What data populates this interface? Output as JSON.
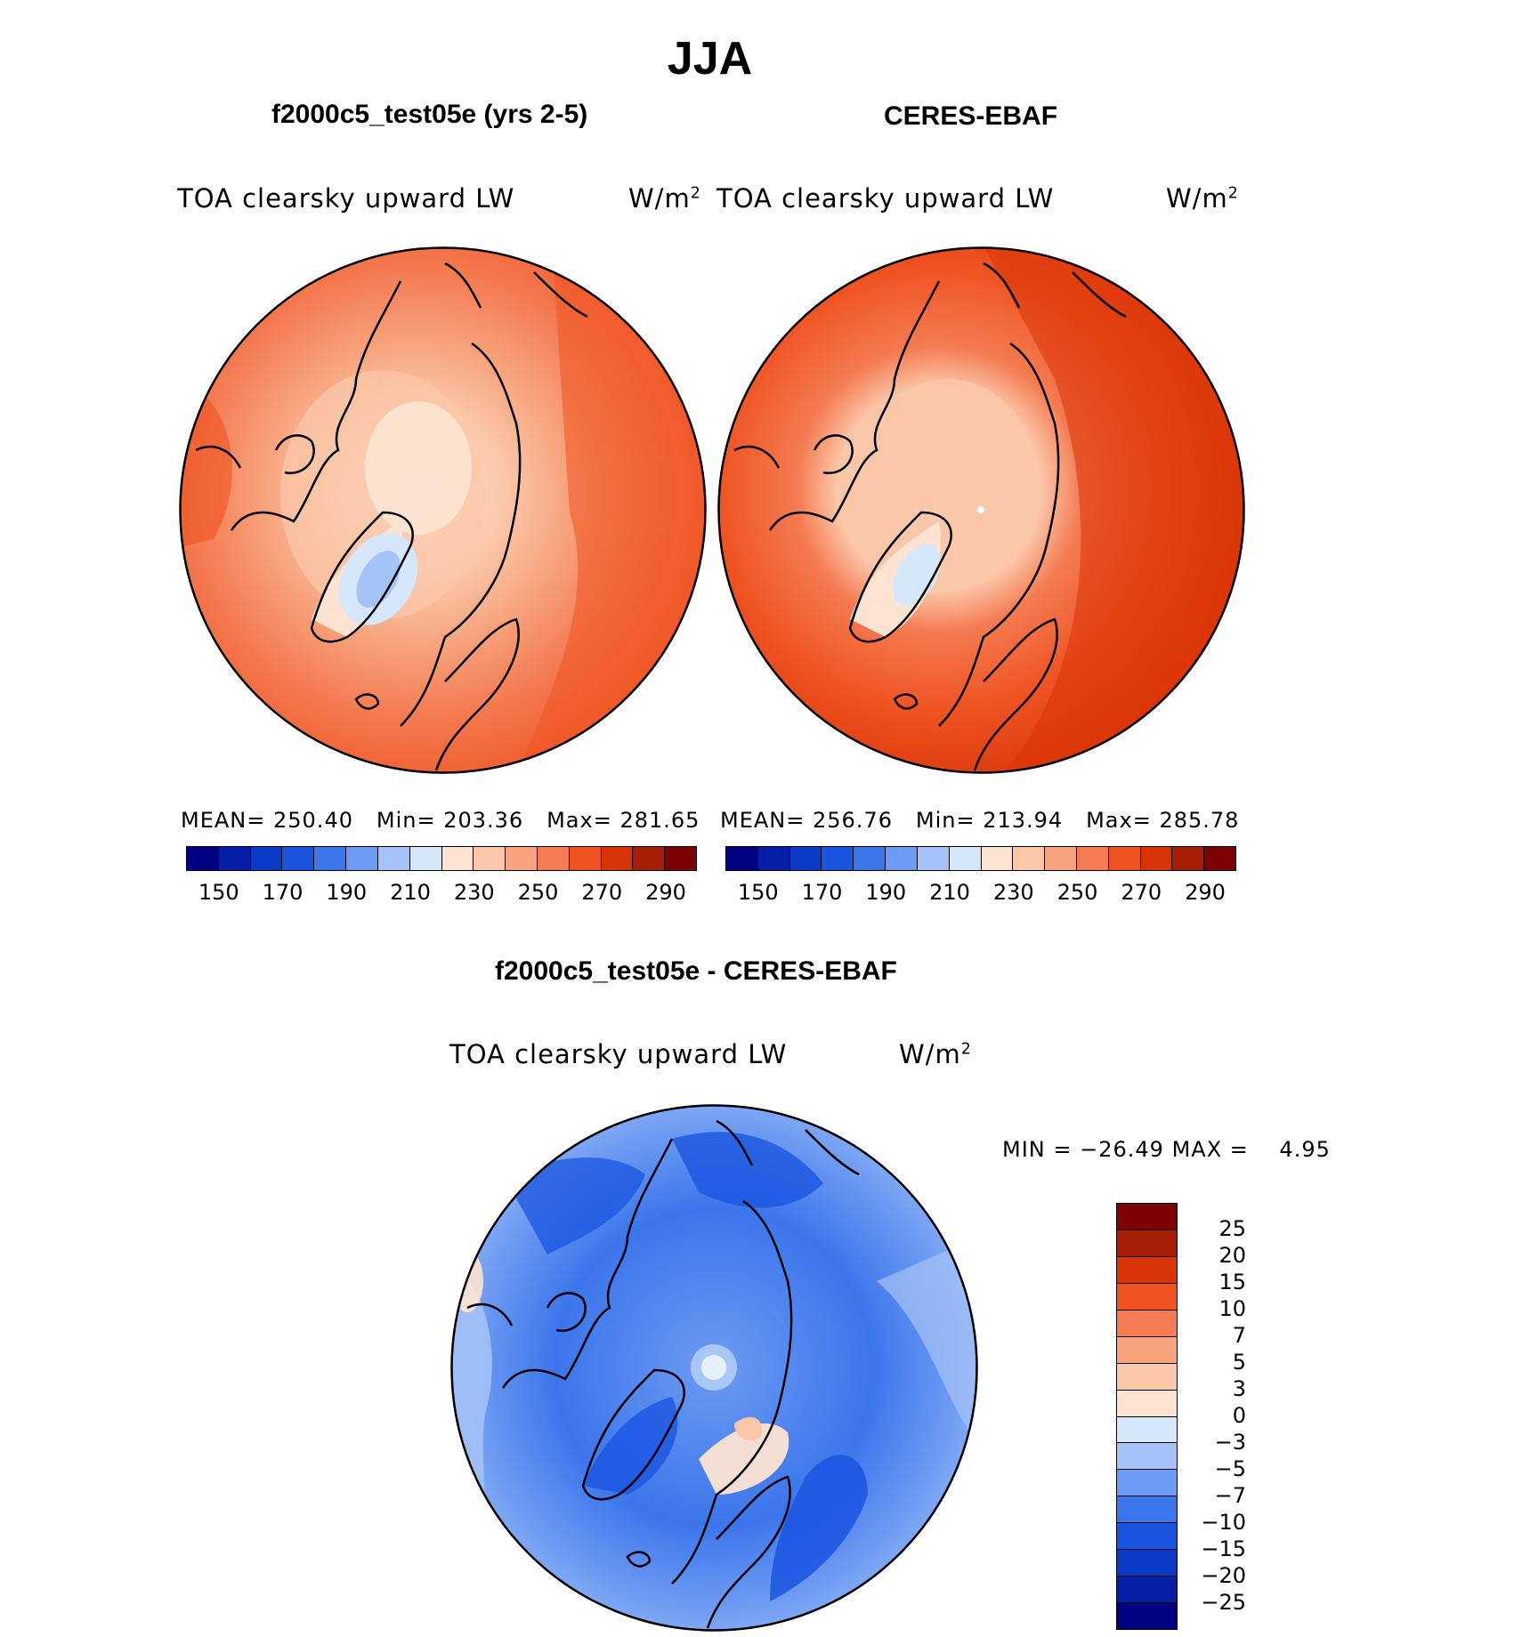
{
  "title": "JJA",
  "panels": {
    "model": {
      "title": "f2000c5_test05e (yrs 2-5)",
      "var_label": "TOA clearsky upward LW",
      "units": "W/m",
      "units_sup": "2",
      "mean_label": "MEAN=",
      "mean": "250.40",
      "min_label": "Min=",
      "min": "203.36",
      "max_label": "Max=",
      "max": "281.65"
    },
    "obs": {
      "title": "CERES-EBAF",
      "var_label": "TOA clearsky upward LW",
      "units": "W/m",
      "units_sup": "2",
      "mean_label": "MEAN=",
      "mean": "256.76",
      "min_label": "Min=",
      "min": "213.94",
      "max_label": "Max=",
      "max": "285.78"
    },
    "diff": {
      "title": "f2000c5_test05e - CERES-EBAF",
      "var_label": "TOA clearsky upward LW",
      "units": "W/m",
      "units_sup": "2",
      "min_label": "MIN =",
      "min": "−26.49",
      "max_label": "MAX =",
      "max": "4.95"
    }
  },
  "colorbar_abs": {
    "colors": [
      "#000080",
      "#0520a6",
      "#0a3ac6",
      "#1a55e0",
      "#3c76ec",
      "#6d9af2",
      "#a5c3f6",
      "#d5e7f9",
      "#fde4d2",
      "#fbc7a9",
      "#f7a37d",
      "#f47b52",
      "#ef5322",
      "#d93408",
      "#a81d05",
      "#7d0203"
    ],
    "ticks": [
      "150",
      "170",
      "190",
      "210",
      "230",
      "250",
      "270",
      "290"
    ]
  },
  "colorbar_diff": {
    "colors": [
      "#7d0203",
      "#a81d05",
      "#d93408",
      "#ef5322",
      "#f47b52",
      "#f7a37d",
      "#fbc7a9",
      "#fde4d2",
      "#d5e7f9",
      "#a5c3f6",
      "#6d9af2",
      "#3c76ec",
      "#1a55e0",
      "#0a3ac6",
      "#0520a6",
      "#000080"
    ],
    "ticks": [
      "25",
      "20",
      "15",
      "10",
      "7",
      "5",
      "3",
      "0",
      "−3",
      "−5",
      "−7",
      "−10",
      "−15",
      "−20",
      "−25"
    ]
  }
}
